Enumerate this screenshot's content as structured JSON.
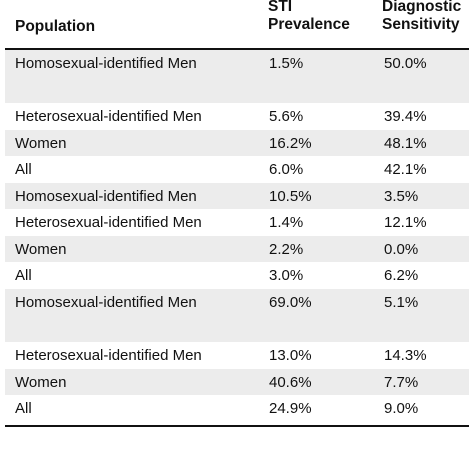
{
  "table": {
    "headers": {
      "population": "Population",
      "prevalence_line1": "STI",
      "prevalence_line2": "Prevalence",
      "sensitivity_line1": "Diagnostic",
      "sensitivity_line2": "Sensitivity"
    },
    "rows": [
      {
        "population": "Homosexual-identified Men",
        "prevalence": "1.5%",
        "sensitivity": "50.0%"
      },
      {
        "population": "Heterosexual-identified Men",
        "prevalence": "5.6%",
        "sensitivity": "39.4%"
      },
      {
        "population": "Women",
        "prevalence": "16.2%",
        "sensitivity": "48.1%"
      },
      {
        "population": "All",
        "prevalence": "6.0%",
        "sensitivity": "42.1%"
      },
      {
        "population": "Homosexual-identified Men",
        "prevalence": "10.5%",
        "sensitivity": "3.5%"
      },
      {
        "population": "Heterosexual-identified Men",
        "prevalence": "1.4%",
        "sensitivity": "12.1%"
      },
      {
        "population": "Women",
        "prevalence": "2.2%",
        "sensitivity": "0.0%"
      },
      {
        "population": "All",
        "prevalence": "3.0%",
        "sensitivity": "6.2%"
      },
      {
        "population": "Homosexual-identified Men",
        "prevalence": "69.0%",
        "sensitivity": "5.1%"
      },
      {
        "population": "Heterosexual-identified Men",
        "prevalence": "13.0%",
        "sensitivity": "14.3%"
      },
      {
        "population": "Women",
        "prevalence": "40.6%",
        "sensitivity": "7.7%"
      },
      {
        "population": "All",
        "prevalence": "24.9%",
        "sensitivity": "9.0%"
      }
    ]
  }
}
